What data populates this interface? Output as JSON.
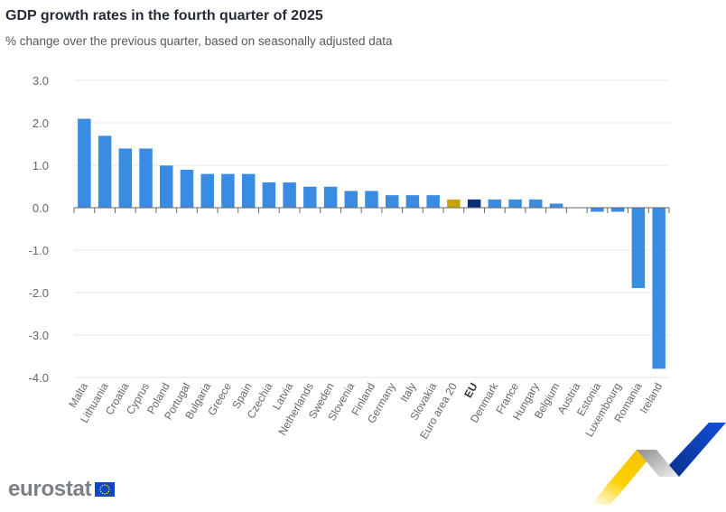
{
  "chart_data": {
    "type": "bar",
    "title": "GDP growth rates in the fourth quarter of 2025",
    "subtitle": "% change over the previous quarter, based on seasonally adjusted data",
    "xlabel": "",
    "ylabel": "",
    "ylim": [
      -4.0,
      3.0
    ],
    "yticks": [
      "3.0",
      "2.0",
      "1.0",
      "0.0",
      "-1.0",
      "-2.0",
      "-3.0",
      "-4.0"
    ],
    "ytick_values": [
      3,
      2,
      1,
      0,
      -1,
      -2,
      -3,
      -4
    ],
    "grid": true,
    "categories": [
      "Malta",
      "Lithuania",
      "Croatia",
      "Cyprus",
      "Poland",
      "Portugal",
      "Bulgaria",
      "Greece",
      "Spain",
      "Czechia",
      "Latvia",
      "Netherlands",
      "Sweden",
      "Slovenia",
      "Finland",
      "Germany",
      "Italy",
      "Slovakia",
      "Euro area 20",
      "EU",
      "Denmark",
      "France",
      "Hungary",
      "Belgium",
      "Austria",
      "Estonia",
      "Luxembourg",
      "Romania",
      "Ireland"
    ],
    "values": [
      2.1,
      1.7,
      1.4,
      1.4,
      1.0,
      0.9,
      0.8,
      0.8,
      0.8,
      0.6,
      0.6,
      0.5,
      0.5,
      0.4,
      0.4,
      0.3,
      0.3,
      0.3,
      0.2,
      0.2,
      0.2,
      0.2,
      0.2,
      0.1,
      0.0,
      -0.1,
      -0.1,
      -1.9,
      -3.8
    ],
    "bold_categories": [
      "EU"
    ],
    "colors": {
      "default": "#3a8be2",
      "Euro area 20": "#c9a100",
      "EU": "#0b2e7a"
    }
  },
  "branding": {
    "logo_text": "eurostat"
  }
}
